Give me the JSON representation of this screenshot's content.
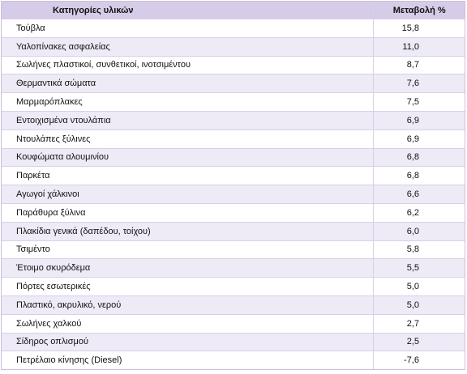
{
  "table": {
    "header": [
      "Κατηγορίες υλικών",
      "Μεταβολή %"
    ],
    "rows": [
      [
        "Τούβλα",
        "15,8"
      ],
      [
        "Υαλοπίνακες ασφαλείας",
        "11,0"
      ],
      [
        "Σωλήνες πλαστικοί, συνθετικοί, ινοτσιμέντου",
        "8,7"
      ],
      [
        "Θερμαντικά σώματα",
        "7,6"
      ],
      [
        "Μαρμαρόπλακες",
        "7,5"
      ],
      [
        "Εντοιχισμένα ντουλάπια",
        "6,9"
      ],
      [
        "Ντουλάπες ξύλινες",
        "6,9"
      ],
      [
        "Κουφώματα αλουμινίου",
        "6,8"
      ],
      [
        "Παρκέτα",
        "6,8"
      ],
      [
        "Αγωγοί χάλκινοι",
        "6,6"
      ],
      [
        "Παράθυρα ξύλινα",
        "6,2"
      ],
      [
        "Πλακίδια γενικά (δαπέδου, τοίχου)",
        "6,0"
      ],
      [
        "Τσιμέντο",
        "5,8"
      ],
      [
        "Έτοιμο σκυρόδεμα",
        "5,5"
      ],
      [
        "Πόρτες εσωτερικές",
        "5,0"
      ],
      [
        "Πλαστικό, ακρυλικό, νερού",
        "5,0"
      ],
      [
        "Σωλήνες χαλκού",
        "2,7"
      ],
      [
        "Σίδηρος οπλισμού",
        "2,5"
      ],
      [
        "Πετρέλαιο κίνησης (Diesel)",
        "-7,6"
      ]
    ]
  }
}
